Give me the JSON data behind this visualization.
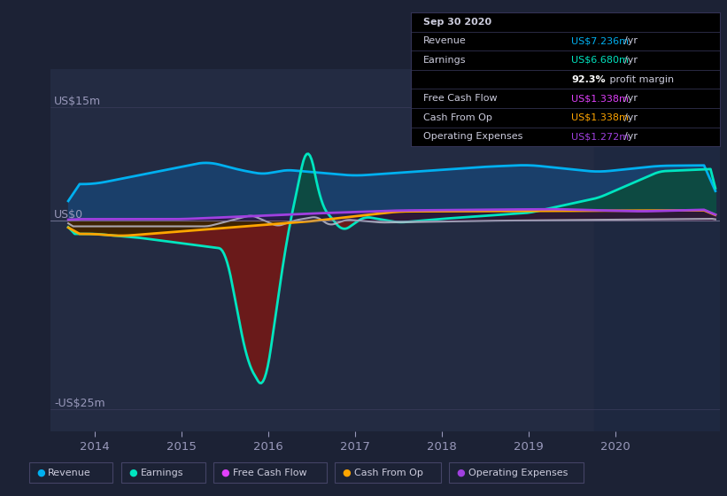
{
  "bg_color": "#1c2235",
  "plot_bg_color": "#1c2235",
  "y_label_top": "US$15m",
  "y_label_zero": "US$0",
  "y_label_bottom": "-US$25m",
  "x_ticks": [
    2014,
    2015,
    2016,
    2017,
    2018,
    2019,
    2020
  ],
  "x_min": 2013.5,
  "x_max": 2021.2,
  "y_min": -28,
  "y_max": 20,
  "info_box": {
    "date": "Sep 30 2020",
    "revenue_label": "Revenue",
    "revenue_val": "US$7.236m /yr",
    "revenue_color": "#00b0f0",
    "earnings_label": "Earnings",
    "earnings_val": "US$6.680m /yr",
    "earnings_color": "#00e5c0",
    "profit_margin_bold": "92.3%",
    "profit_margin_rest": " profit margin",
    "fcf_label": "Free Cash Flow",
    "fcf_val": "US$1.338m /yr",
    "fcf_color": "#e040fb",
    "cashop_label": "Cash From Op",
    "cashop_val": "US$1.338m /yr",
    "cashop_color": "#ffa500",
    "opex_label": "Operating Expenses",
    "opex_val": "US$1.272m /yr",
    "opex_color": "#a040e0"
  },
  "legend": [
    {
      "label": "Revenue",
      "color": "#00b0f0"
    },
    {
      "label": "Earnings",
      "color": "#00e5c0"
    },
    {
      "label": "Free Cash Flow",
      "color": "#e040fb"
    },
    {
      "label": "Cash From Op",
      "color": "#ffa500"
    },
    {
      "label": "Operating Expenses",
      "color": "#a040e0"
    }
  ],
  "revenue_color": "#00b0f0",
  "revenue_fill": "#1a3f6a",
  "earnings_color": "#00e5c0",
  "earnings_fill_pos": "#0d4a42",
  "earnings_fill_neg": "#6a1a1a",
  "fcf_color": "#bbbbcc",
  "cashop_color": "#ffa500",
  "cashop_fill_neg": "#3a2500",
  "cashop_fill_pos": "#3a2a10",
  "opex_color": "#a040e0",
  "opex_fill": "#2a1040",
  "bg_left": "#232b42",
  "bg_right": "#1e2840"
}
